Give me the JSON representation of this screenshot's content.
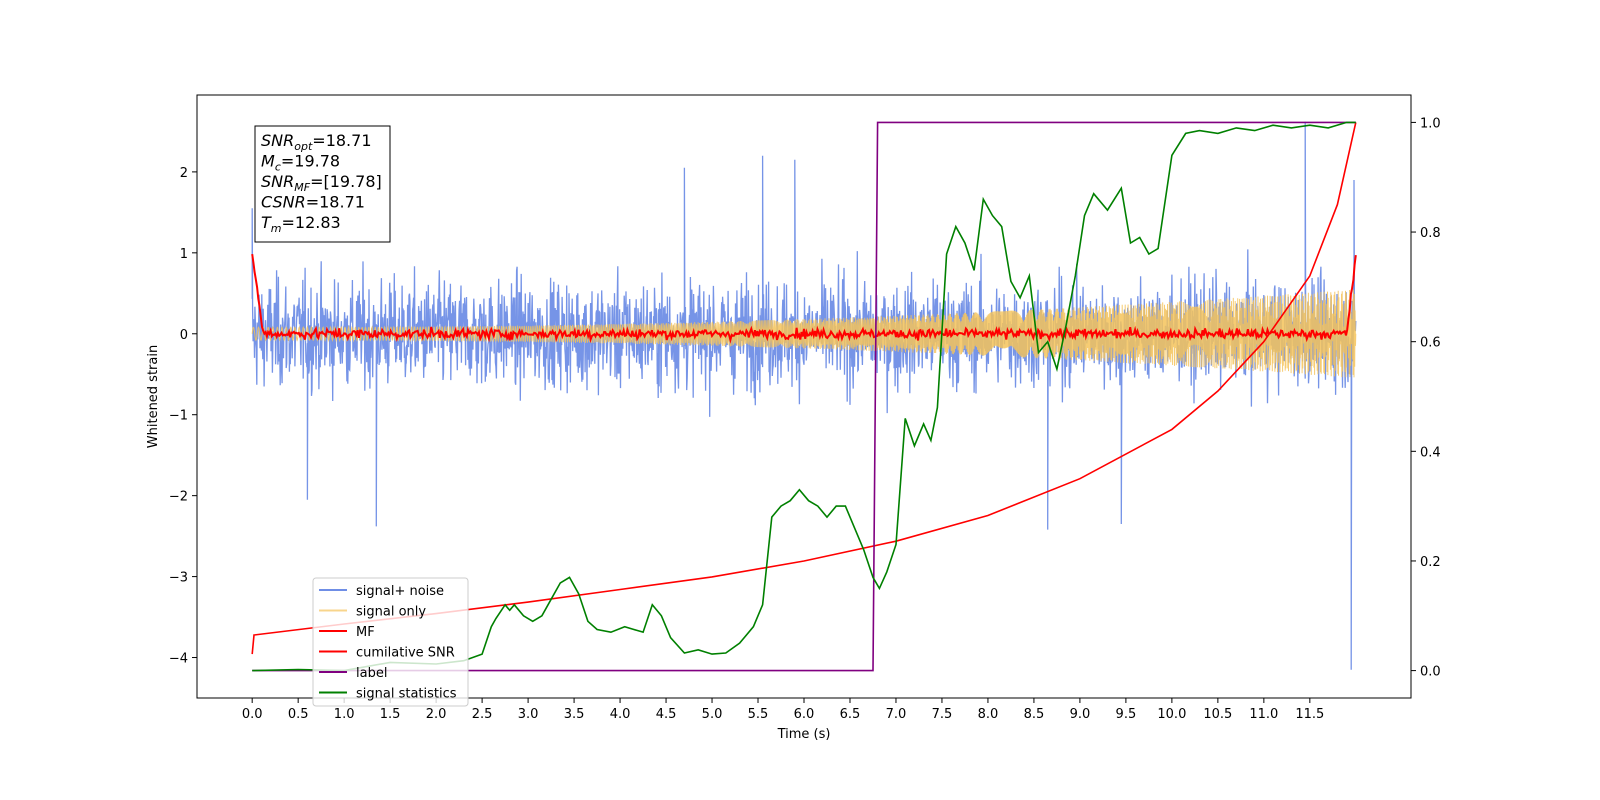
{
  "chart_data": {
    "type": "line",
    "title": "",
    "xlabel": "Time (s)",
    "ylabel": "Whitened strain",
    "ylabel_right": "",
    "xlim": [
      -0.6,
      12.6
    ],
    "ylim": [
      -4.5,
      2.95
    ],
    "ylim_right": [
      -0.05,
      1.05
    ],
    "x_ticks": [
      "0.0",
      "0.5",
      "1.0",
      "1.5",
      "2.0",
      "2.5",
      "3.0",
      "3.5",
      "4.0",
      "4.5",
      "5.0",
      "5.5",
      "6.0",
      "6.5",
      "7.0",
      "7.5",
      "8.0",
      "8.5",
      "9.0",
      "9.5",
      "10.0",
      "10.5",
      "11.0",
      "11.5"
    ],
    "y_ticks": [
      "−4",
      "−3",
      "−2",
      "−1",
      "0",
      "1",
      "2"
    ],
    "y_ticks_right": [
      "0.0",
      "0.2",
      "0.4",
      "0.6",
      "0.8",
      "1.0"
    ],
    "grid": false,
    "legend_position": "lower-left",
    "series": [
      {
        "name": "signal+ noise",
        "color": "#6f8ee6",
        "axis": "left",
        "kind": "noise_band",
        "x_range": [
          0,
          12.0
        ],
        "typical_amplitude": 0.55,
        "peak_amplitude": 2.2,
        "outliers": [
          [
            0.0,
            1.55
          ],
          [
            1.35,
            -2.38
          ],
          [
            0.6,
            -2.05
          ],
          [
            4.7,
            2.05
          ],
          [
            5.55,
            2.2
          ],
          [
            5.9,
            2.15
          ],
          [
            8.65,
            -2.42
          ],
          [
            9.45,
            -2.35
          ],
          [
            11.45,
            2.62
          ],
          [
            11.95,
            -4.15
          ],
          [
            11.98,
            1.9
          ]
        ]
      },
      {
        "name": "signal only",
        "color": "#f5c35b",
        "axis": "left",
        "kind": "chirp",
        "x_range": [
          0,
          12.0
        ],
        "amplitude_start": 0.08,
        "amplitude_end": 0.55
      },
      {
        "name": "MF",
        "color": "#ff0000",
        "axis": "left",
        "kind": "noisy_zero",
        "x_range": [
          0,
          12.0
        ],
        "start_value": 1.0,
        "jitter": 0.05,
        "end_value": 0.95
      },
      {
        "name": "cumilative SNR",
        "color": "#ff0000",
        "axis": "right",
        "x": [
          0,
          0.02,
          1,
          2,
          3,
          4,
          5,
          6,
          7,
          8,
          9,
          10,
          10.5,
          11,
          11.5,
          11.8,
          12.0
        ],
        "y": [
          0.03,
          0.065,
          0.085,
          0.104,
          0.125,
          0.148,
          0.171,
          0.2,
          0.236,
          0.283,
          0.35,
          0.44,
          0.51,
          0.6,
          0.72,
          0.85,
          1.0
        ]
      },
      {
        "name": "label",
        "color": "#800080",
        "axis": "right",
        "x": [
          0,
          6.75,
          6.8,
          12.0
        ],
        "y": [
          0.0,
          0.0,
          1.0,
          1.0
        ]
      },
      {
        "name": "signal statistics",
        "color": "#008000",
        "axis": "right",
        "x": [
          0,
          0.5,
          1.0,
          1.5,
          2.0,
          2.3,
          2.5,
          2.6,
          2.65,
          2.75,
          2.8,
          2.85,
          2.95,
          3.05,
          3.15,
          3.25,
          3.35,
          3.45,
          3.55,
          3.65,
          3.75,
          3.9,
          4.05,
          4.15,
          4.25,
          4.35,
          4.45,
          4.55,
          4.7,
          4.85,
          5.0,
          5.15,
          5.3,
          5.45,
          5.55,
          5.65,
          5.75,
          5.85,
          5.95,
          6.05,
          6.15,
          6.25,
          6.35,
          6.45,
          6.55,
          6.65,
          6.75,
          6.82,
          6.9,
          7.0,
          7.1,
          7.2,
          7.3,
          7.38,
          7.45,
          7.55,
          7.65,
          7.75,
          7.85,
          7.95,
          8.05,
          8.15,
          8.25,
          8.35,
          8.45,
          8.55,
          8.65,
          8.75,
          8.85,
          8.95,
          9.05,
          9.15,
          9.3,
          9.45,
          9.55,
          9.65,
          9.75,
          9.85,
          10.0,
          10.15,
          10.3,
          10.5,
          10.7,
          10.9,
          11.1,
          11.3,
          11.5,
          11.7,
          11.9,
          12.0
        ],
        "y": [
          0.0,
          0.002,
          0.0,
          0.015,
          0.012,
          0.018,
          0.03,
          0.08,
          0.095,
          0.12,
          0.11,
          0.12,
          0.1,
          0.09,
          0.1,
          0.13,
          0.16,
          0.17,
          0.14,
          0.09,
          0.075,
          0.07,
          0.08,
          0.075,
          0.07,
          0.12,
          0.1,
          0.06,
          0.032,
          0.038,
          0.03,
          0.032,
          0.05,
          0.08,
          0.12,
          0.28,
          0.3,
          0.31,
          0.33,
          0.31,
          0.3,
          0.28,
          0.3,
          0.3,
          0.26,
          0.22,
          0.17,
          0.15,
          0.18,
          0.23,
          0.46,
          0.41,
          0.45,
          0.42,
          0.48,
          0.76,
          0.81,
          0.78,
          0.73,
          0.86,
          0.83,
          0.81,
          0.71,
          0.68,
          0.72,
          0.58,
          0.6,
          0.55,
          0.63,
          0.72,
          0.83,
          0.87,
          0.84,
          0.88,
          0.78,
          0.79,
          0.76,
          0.77,
          0.94,
          0.98,
          0.985,
          0.98,
          0.99,
          0.985,
          0.995,
          0.99,
          0.995,
          0.99,
          1.0,
          1.0
        ]
      }
    ],
    "annotation": {
      "lines": [
        {
          "var": "SNR",
          "sub": "opt",
          "value": "=18.71"
        },
        {
          "var": "M",
          "sub": "c",
          "value": "=19.78"
        },
        {
          "var": "SNR",
          "sub": "MF",
          "value": "=[19.78]"
        },
        {
          "var": "CSNR",
          "sub": "",
          "value": "=18.71"
        },
        {
          "var": "T",
          "sub": "m",
          "value": "=12.83"
        }
      ]
    }
  }
}
